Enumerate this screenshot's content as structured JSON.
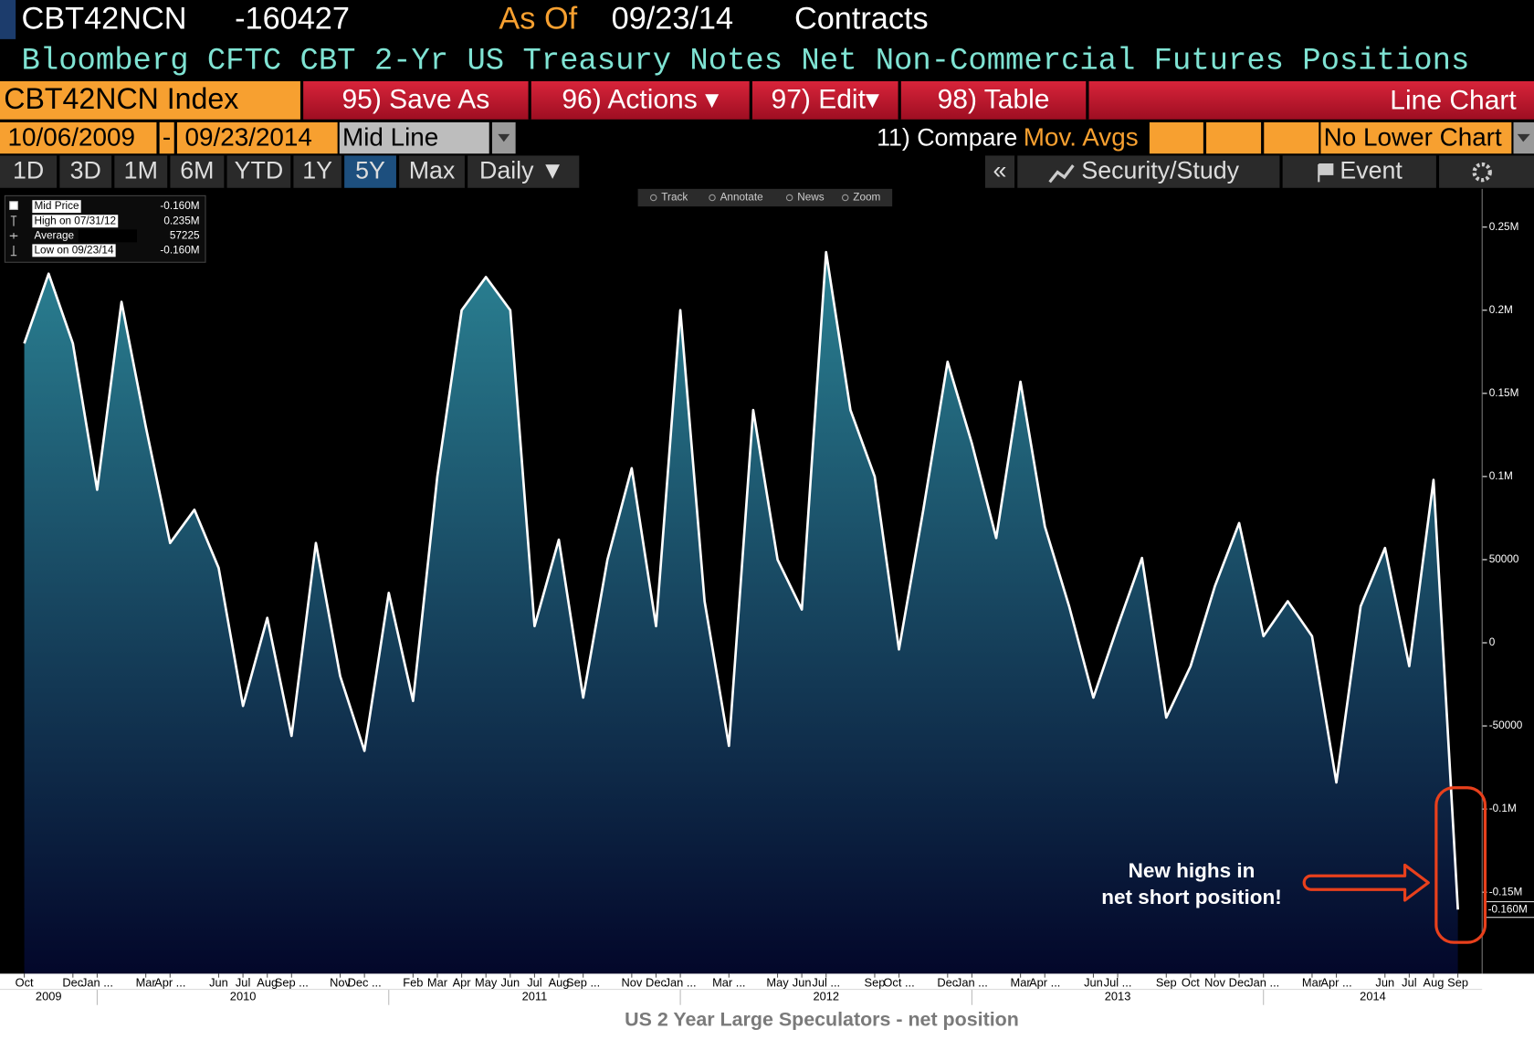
{
  "header": {
    "ticker": "CBT42NCN",
    "last": -160427,
    "as_of_label": "As Of",
    "as_of": "09/23/14",
    "units": "Contracts",
    "description": "Bloomberg CFTC CBT 2-Yr US Treasury Notes Net Non-Commercial Futures Positions"
  },
  "toolbar": {
    "security": "CBT42NCN Index",
    "buttons": [
      "95) Save As",
      "96) Actions ▾",
      "97) Edit▾",
      "98) Table"
    ],
    "view": "Line Chart"
  },
  "range_bar": {
    "start": "10/06/2009",
    "separator": "-",
    "end": "09/23/2014",
    "mode": "Mid Line",
    "compare": "11) Compare",
    "compare_value": "Mov. Avgs",
    "lower_chart": "No Lower Chart"
  },
  "periods": [
    "1D",
    "3D",
    "1M",
    "6M",
    "YTD",
    "1Y",
    "5Y",
    "Max"
  ],
  "selected_period": "5Y",
  "frequency": "Daily ▼",
  "tabs": [
    "«",
    "Security/Study",
    "Event"
  ],
  "chart_tools": [
    "Track",
    "Annotate",
    "News",
    "Zoom"
  ],
  "chart_data": {
    "type": "line",
    "title": "US 2 Year Large Speculators - net position",
    "x": [
      "2009-10",
      "2009-11",
      "2009-12",
      "2010-01",
      "2010-02",
      "2010-03",
      "2010-04",
      "2010-05",
      "2010-06",
      "2010-07",
      "2010-08",
      "2010-09",
      "2010-10",
      "2010-11",
      "2010-12",
      "2011-01",
      "2011-02",
      "2011-03",
      "2011-04",
      "2011-05",
      "2011-06",
      "2011-07",
      "2011-08",
      "2011-09",
      "2011-10",
      "2011-11",
      "2011-12",
      "2012-01",
      "2012-02",
      "2012-03",
      "2012-04",
      "2012-05",
      "2012-06",
      "2012-07",
      "2012-08",
      "2012-09",
      "2012-10",
      "2012-11",
      "2012-12",
      "2013-01",
      "2013-02",
      "2013-03",
      "2013-04",
      "2013-05",
      "2013-06",
      "2013-07",
      "2013-08",
      "2013-09",
      "2013-10",
      "2013-11",
      "2013-12",
      "2014-01",
      "2014-02",
      "2014-03",
      "2014-04",
      "2014-05",
      "2014-06",
      "2014-07",
      "2014-08",
      "2014-09"
    ],
    "series": [
      {
        "name": "Mid Price",
        "color": "#ffffff",
        "fill_colors": [
          "#2e8c9c",
          "#03072a"
        ],
        "last_label": "-0.160M",
        "values": [
          180000,
          222000,
          180000,
          92000,
          205000,
          130000,
          60000,
          80000,
          45000,
          -38000,
          15000,
          -56000,
          60000,
          -20000,
          -65000,
          30000,
          -35000,
          100000,
          200000,
          220000,
          200000,
          10000,
          62000,
          -33000,
          50000,
          105000,
          10000,
          200000,
          25000,
          -62000,
          140000,
          50000,
          20000,
          235000,
          140000,
          100000,
          -4000,
          80000,
          169000,
          120000,
          63000,
          157000,
          70000,
          22000,
          -33000,
          10000,
          51000,
          -45000,
          -14000,
          34000,
          72000,
          4000,
          25000,
          4000,
          -84000,
          22000,
          57000,
          -14000,
          98000,
          -160427
        ]
      }
    ],
    "legend_stats": [
      {
        "label": "High on 07/31/12",
        "value": "0.235M"
      },
      {
        "label": "Average",
        "value": 57225
      },
      {
        "label": "Low on 09/23/14",
        "value": "-0.160M"
      }
    ],
    "xlim": [
      "2009-09",
      "2014-10"
    ],
    "xticks": [
      {
        "value": "2009-10",
        "label": "Oct"
      },
      {
        "value": "2009-12",
        "label": "Dec"
      },
      {
        "value": "2010-01",
        "label": "Jan ..."
      },
      {
        "value": "2010-03",
        "label": "Mar"
      },
      {
        "value": "2010-04",
        "label": "Apr ..."
      },
      {
        "value": "2010-06",
        "label": "Jun"
      },
      {
        "value": "2010-07",
        "label": "Jul"
      },
      {
        "value": "2010-08",
        "label": "Aug"
      },
      {
        "value": "2010-09",
        "label": "Sep ..."
      },
      {
        "value": "2010-11",
        "label": "Nov"
      },
      {
        "value": "2010-12",
        "label": "Dec ..."
      },
      {
        "value": "2011-02",
        "label": "Feb"
      },
      {
        "value": "2011-03",
        "label": "Mar"
      },
      {
        "value": "2011-04",
        "label": "Apr"
      },
      {
        "value": "2011-05",
        "label": "May"
      },
      {
        "value": "2011-06",
        "label": "Jun"
      },
      {
        "value": "2011-07",
        "label": "Jul"
      },
      {
        "value": "2011-08",
        "label": "Aug"
      },
      {
        "value": "2011-09",
        "label": "Sep ..."
      },
      {
        "value": "2011-11",
        "label": "Nov"
      },
      {
        "value": "2011-12",
        "label": "Dec"
      },
      {
        "value": "2012-01",
        "label": "Jan ..."
      },
      {
        "value": "2012-03",
        "label": "Mar ..."
      },
      {
        "value": "2012-05",
        "label": "May"
      },
      {
        "value": "2012-06",
        "label": "Jun"
      },
      {
        "value": "2012-07",
        "label": "Jul ..."
      },
      {
        "value": "2012-09",
        "label": "Sep"
      },
      {
        "value": "2012-10",
        "label": "Oct ..."
      },
      {
        "value": "2012-12",
        "label": "Dec"
      },
      {
        "value": "2013-01",
        "label": "Jan ..."
      },
      {
        "value": "2013-03",
        "label": "Mar"
      },
      {
        "value": "2013-04",
        "label": "Apr ..."
      },
      {
        "value": "2013-06",
        "label": "Jun"
      },
      {
        "value": "2013-07",
        "label": "Jul ..."
      },
      {
        "value": "2013-09",
        "label": "Sep"
      },
      {
        "value": "2013-10",
        "label": "Oct"
      },
      {
        "value": "2013-11",
        "label": "Nov"
      },
      {
        "value": "2013-12",
        "label": "Dec"
      },
      {
        "value": "2014-01",
        "label": "Jan ..."
      },
      {
        "value": "2014-03",
        "label": "Mar"
      },
      {
        "value": "2014-04",
        "label": "Apr ..."
      },
      {
        "value": "2014-06",
        "label": "Jun"
      },
      {
        "value": "2014-07",
        "label": "Jul"
      },
      {
        "value": "2014-08",
        "label": "Aug"
      },
      {
        "value": "2014-09",
        "label": "Sep"
      }
    ],
    "x_year_labels": [
      2009,
      2010,
      2011,
      2012,
      2013,
      2014
    ],
    "ylim": [
      -199000,
      273000
    ],
    "yticks": [
      {
        "value": 250000,
        "label": "0.25M"
      },
      {
        "value": 200000,
        "label": "0.2M"
      },
      {
        "value": 150000,
        "label": "0.15M"
      },
      {
        "value": 100000,
        "label": "0.1M"
      },
      50000,
      0,
      -50000,
      {
        "value": -100000,
        "label": "-0.1M"
      },
      {
        "value": -150000,
        "label": "-0.15M"
      }
    ],
    "grid": false,
    "annotation": [
      "New highs in",
      "net short position!"
    ],
    "annotation_color": "#e8401c"
  }
}
